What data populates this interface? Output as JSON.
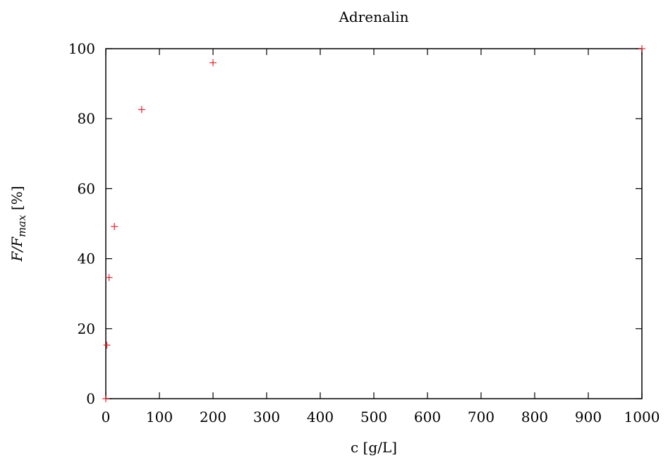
{
  "chart_data": {
    "type": "scatter",
    "title": "Adrenalin",
    "xlabel": "c [g/L]",
    "ylabel": "F/F",
    "ylabel_subscript": "max",
    "ylabel_suffix": " [%]",
    "xlim": [
      0,
      1000
    ],
    "ylim": [
      0,
      100
    ],
    "xticks": [
      0,
      100,
      200,
      300,
      400,
      500,
      600,
      700,
      800,
      900,
      1000
    ],
    "yticks": [
      0,
      20,
      40,
      60,
      80,
      100
    ],
    "grid": false,
    "legend": null,
    "marker": "plus",
    "color": "#e8202e",
    "series": [
      {
        "x": [
          0,
          2,
          6,
          16,
          67,
          200,
          1000
        ],
        "y": [
          0,
          15.3,
          34.6,
          49.2,
          82.6,
          96.0,
          100.0
        ]
      }
    ]
  }
}
